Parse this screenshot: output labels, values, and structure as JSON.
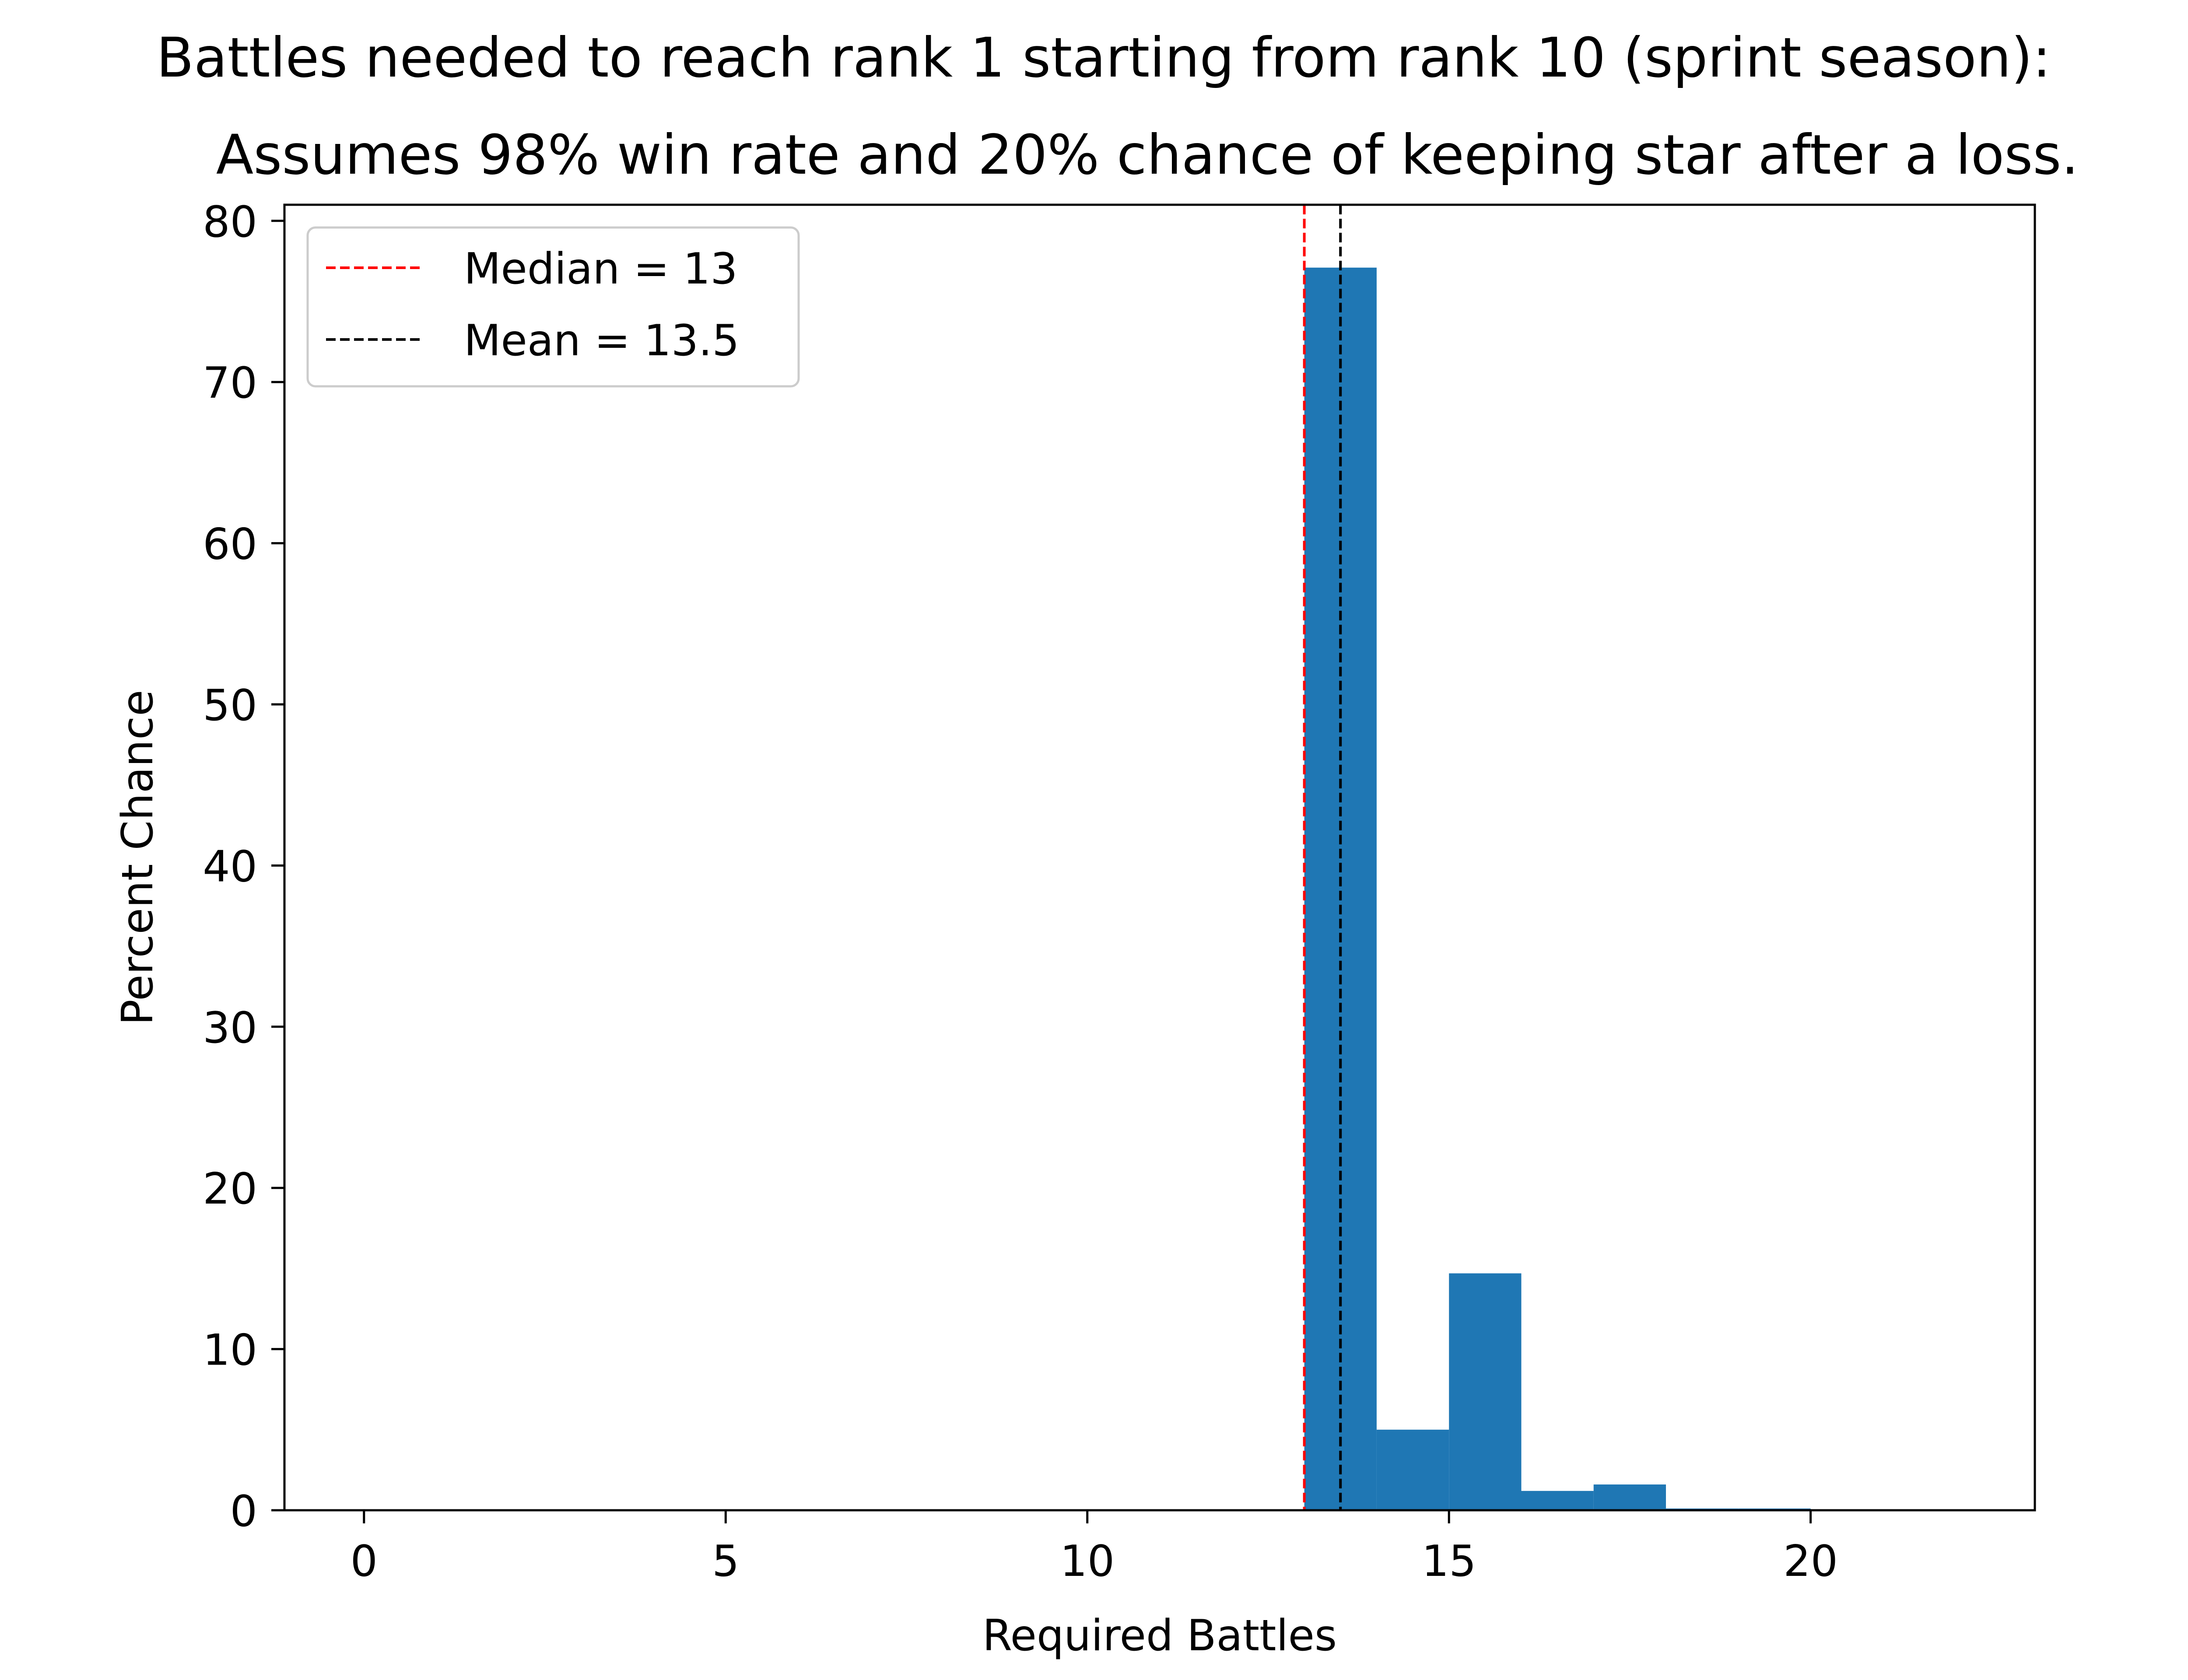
{
  "chart_data": {
    "type": "bar",
    "title_lines": [
      "Battles needed to reach rank 1 starting from rank 10 (sprint season):",
      "Assumes 98% win rate and 20% chance of keeping star after a loss."
    ],
    "xlabel": "Required Battles",
    "ylabel": "Percent Chance",
    "xlim": [
      -1.1,
      23.1
    ],
    "ylim": [
      0,
      81
    ],
    "xticks": [
      0,
      5,
      10,
      15,
      20
    ],
    "yticks": [
      0,
      10,
      20,
      30,
      40,
      50,
      60,
      70,
      80
    ],
    "bar_color": "#1f77b4",
    "bars": [
      {
        "x0": 13,
        "x1": 14,
        "value": 77.1
      },
      {
        "x0": 14,
        "x1": 15,
        "value": 5.0
      },
      {
        "x0": 15,
        "x1": 16,
        "value": 14.7
      },
      {
        "x0": 16,
        "x1": 17,
        "value": 1.2
      },
      {
        "x0": 17,
        "x1": 18,
        "value": 1.6
      },
      {
        "x0": 18,
        "x1": 19,
        "value": 0.1
      },
      {
        "x0": 19,
        "x1": 20,
        "value": 0.1
      }
    ],
    "reference_lines": [
      {
        "name": "Median = 13",
        "x": 13,
        "color": "#ff0000",
        "style": "dashed"
      },
      {
        "name": "Mean = 13.5",
        "x": 13.5,
        "color": "#000000",
        "style": "dashed"
      }
    ],
    "legend_position": "upper-left",
    "grid": false
  }
}
